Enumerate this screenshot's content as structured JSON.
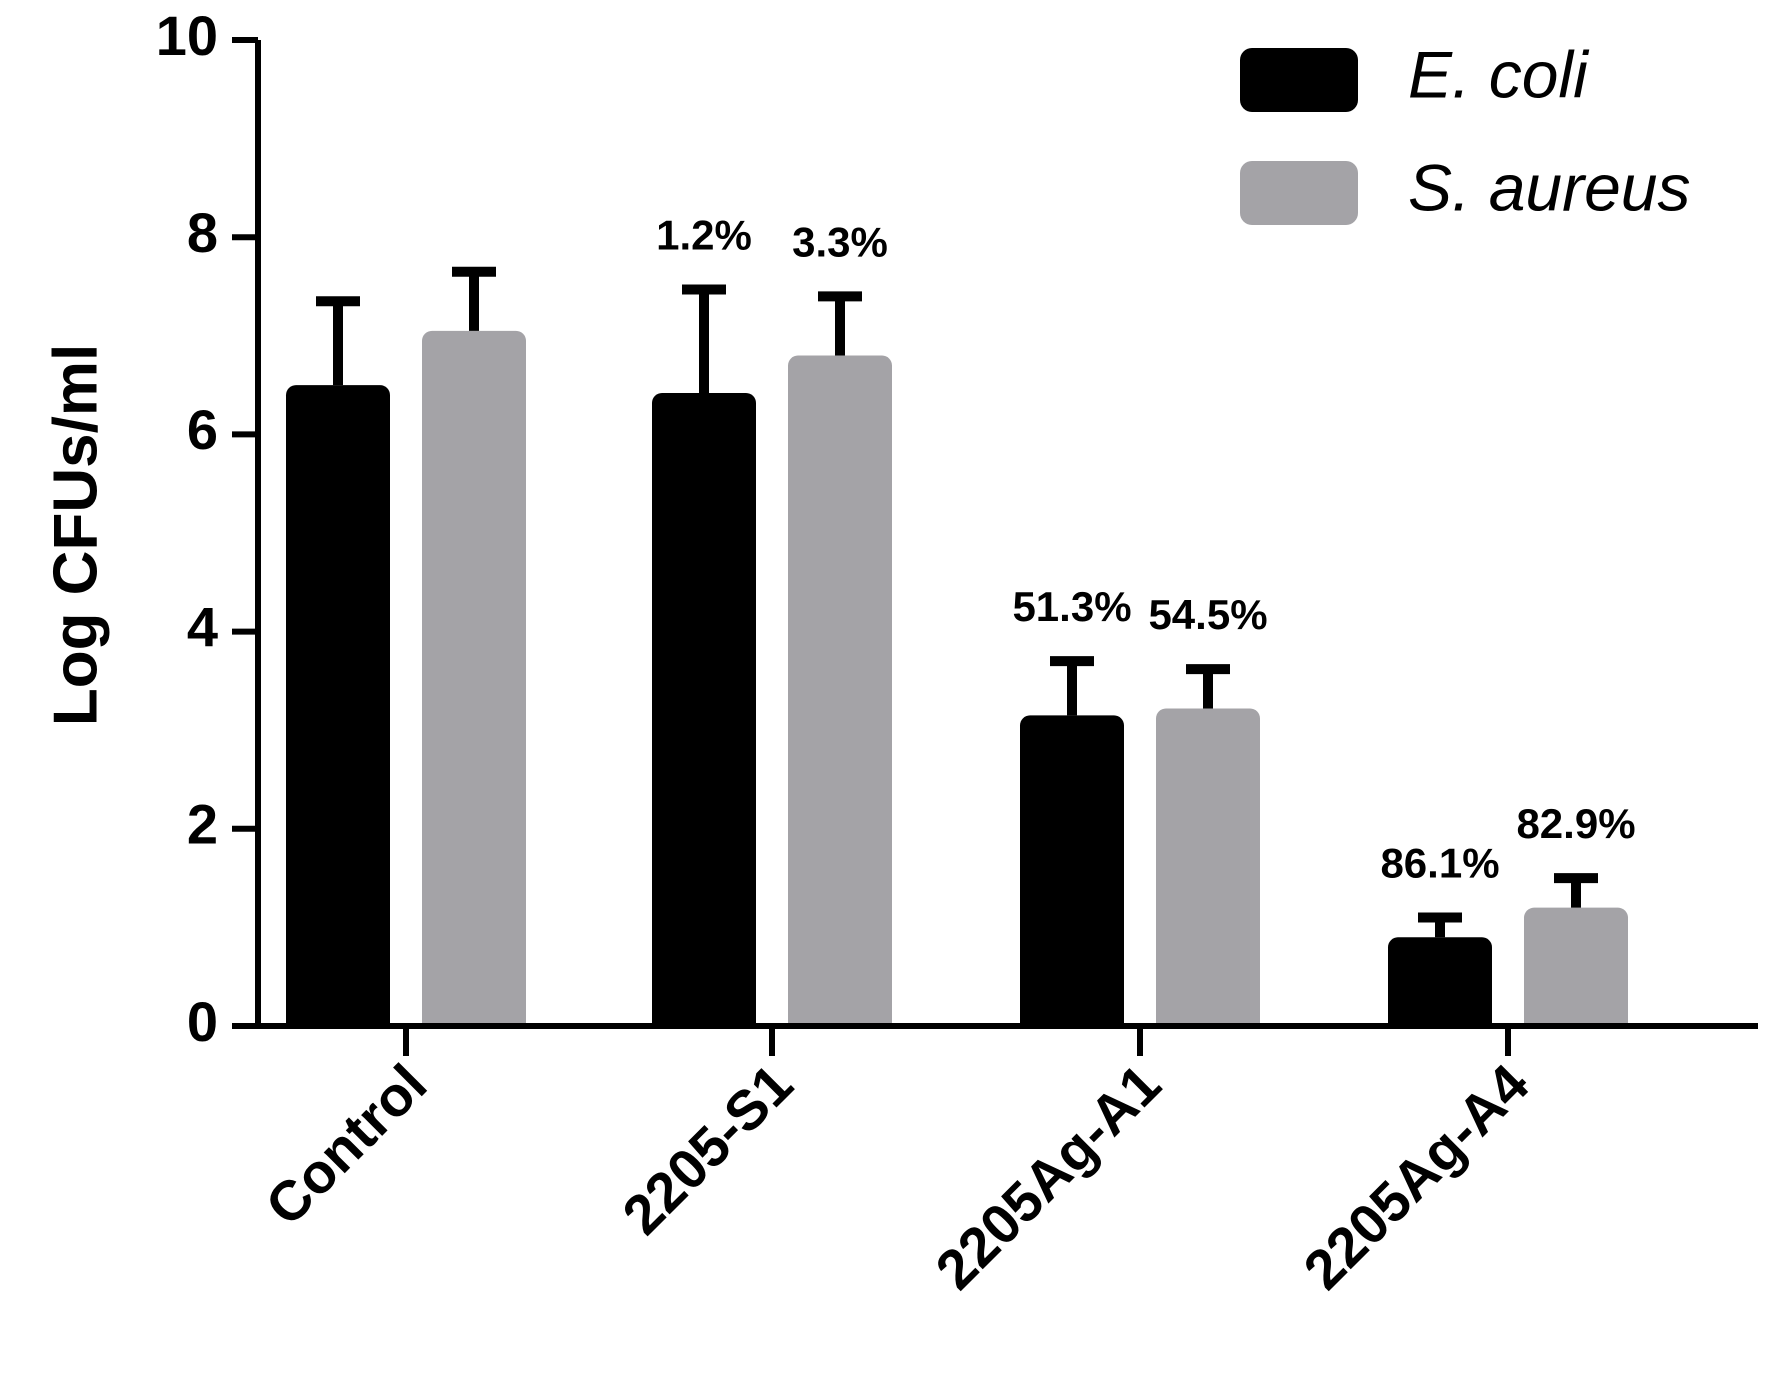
{
  "chart_data": {
    "type": "bar",
    "title": "",
    "xlabel": "",
    "ylabel": "Log CFUs/ml",
    "ylim": [
      0,
      10
    ],
    "yticks": [
      "0",
      "2",
      "4",
      "6",
      "8",
      "10"
    ],
    "categories": [
      "Control",
      "2205-S1",
      "2205Ag-A1",
      "2205Ag-A4"
    ],
    "series": [
      {
        "name": "E. coli",
        "color": "#000000",
        "values": [
          6.5,
          6.42,
          3.15,
          0.9
        ],
        "errors": [
          0.85,
          1.05,
          0.55,
          0.2
        ],
        "labels": [
          "",
          "1.2%",
          "51.3%",
          "86.1%"
        ]
      },
      {
        "name": "S. aureus",
        "color": "#a4a3a7",
        "values": [
          7.05,
          6.8,
          3.22,
          1.2
        ],
        "errors": [
          0.6,
          0.6,
          0.4,
          0.3
        ],
        "labels": [
          "",
          "3.3%",
          "54.5%",
          "82.9%"
        ]
      }
    ],
    "legend_position": "top-right"
  }
}
